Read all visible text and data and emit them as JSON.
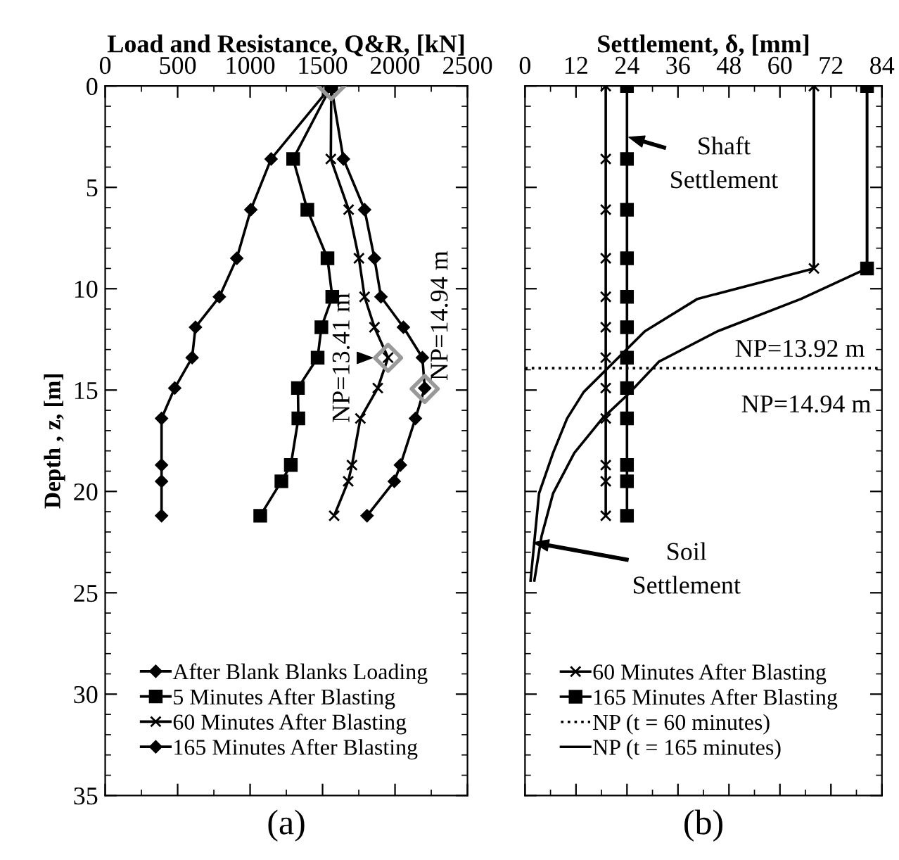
{
  "chart_data": [
    {
      "type": "line",
      "xlabel": "Load and Resistance, Q&R, [kN]",
      "ylabel": "Depth , z, [m]",
      "xlim": [
        0,
        2500
      ],
      "xticks": [
        0,
        500,
        1000,
        1500,
        2000,
        2500
      ],
      "ylim": [
        35,
        0
      ],
      "yticks": [
        0,
        5,
        10,
        15,
        20,
        25,
        30,
        35
      ],
      "legend": "bottom left",
      "line_style": "solid",
      "series": [
        {
          "name": "After Blank Blanks Loading",
          "color": "#000000",
          "marker": "diamond",
          "x": [
            1560,
            1145,
            1005,
            908,
            788,
            623,
            600,
            480,
            389,
            389,
            389,
            389
          ],
          "values": [
            0,
            3.6,
            6.1,
            8.5,
            10.4,
            11.9,
            13.4,
            14.9,
            16.4,
            18.7,
            19.5,
            21.2
          ]
        },
        {
          "name": "5 Minutes After Blasting",
          "color": "#000000",
          "marker": "square",
          "x": [
            1560,
            1297,
            1395,
            1534,
            1567,
            1492,
            1466,
            1330,
            1333,
            1281,
            1216,
            1070
          ],
          "values": [
            0,
            3.6,
            6.1,
            8.5,
            10.4,
            11.9,
            13.4,
            14.9,
            16.4,
            18.7,
            19.5,
            21.2
          ]
        },
        {
          "name": "60 Minutes After Blasting",
          "color": "#000000",
          "marker": "cross",
          "x": [
            1560,
            1557,
            1680,
            1751,
            1790,
            1858,
            1952,
            1881,
            1761,
            1703,
            1677,
            1580
          ],
          "values": [
            0,
            3.6,
            6.1,
            8.5,
            10.4,
            11.9,
            13.4,
            14.9,
            16.4,
            18.7,
            19.5,
            21.2
          ]
        },
        {
          "name": "165 Minutes After Blasting",
          "color": "#000000",
          "marker": "diamond",
          "x": [
            1560,
            1644,
            1790,
            1858,
            1903,
            2058,
            2189,
            2205,
            2141,
            2037,
            1995,
            1807
          ],
          "values": [
            0,
            3.6,
            6.1,
            8.5,
            10.4,
            11.9,
            13.4,
            14.9,
            16.4,
            18.7,
            19.5,
            21.2
          ]
        },
        {
          "type": "scatter",
          "color": "#999999",
          "marker": "diamond",
          "x": [
            1560,
            1952,
            2205
          ],
          "values": [
            0,
            13.41,
            14.94
          ]
        }
      ],
      "annotations": [
        {
          "text": "NP=13.41 m",
          "x": 1952,
          "y": 13.41
        },
        {
          "text": "NP=14.94 m",
          "x": 2205,
          "y": 14.94
        },
        "(a)"
      ]
    },
    {
      "type": "line",
      "xlabel": "Settlement, δ, [mm]",
      "xlim": [
        0,
        84
      ],
      "xticks": [
        0,
        12,
        24,
        36,
        48,
        60,
        72,
        84
      ],
      "ylim": [
        35,
        0
      ],
      "yticks": [
        0,
        5,
        10,
        15,
        20,
        25,
        30,
        35
      ],
      "tick_labels": "x",
      "legend": "bottom left",
      "line_style": "solid",
      "series": [
        {
          "name": "60 Minutes After Blasting",
          "color": "#000000",
          "marker": "cross",
          "x": [
            19,
            19,
            19,
            19,
            19,
            19,
            19,
            19,
            19,
            19,
            19,
            19,
            null,
            68,
            68
          ],
          "values": [
            0,
            3.6,
            6.1,
            8.5,
            10.4,
            11.9,
            13.4,
            14.9,
            16.4,
            18.7,
            19.5,
            21.2,
            null,
            0,
            9
          ]
        },
        {
          "name": "165 Minutes After Blasting",
          "color": "#000000",
          "marker": "square",
          "x": [
            24,
            24,
            24,
            24,
            24,
            24,
            24,
            24,
            24,
            24,
            24,
            24,
            null,
            80.5,
            80.5
          ],
          "values": [
            0,
            3.6,
            6.1,
            8.5,
            10.4,
            11.9,
            13.4,
            14.9,
            16.4,
            18.7,
            19.5,
            21.2,
            null,
            0,
            9
          ]
        },
        {
          "name": "NP (t = 60 minutes)",
          "color": "#000000",
          "marker": "none",
          "line_style": "dotted",
          "x": [
            0,
            84
          ],
          "values": [
            13.92,
            13.92
          ]
        },
        {
          "name": "NP (t = 165 minutes)",
          "color": "#000000",
          "marker": "none",
          "x": [
            80.5,
            80.5,
            65.0,
            45.3,
            31.5,
            24.3,
            18.2,
            11.6,
            6.6,
            3.9,
            2.2
          ],
          "values": [
            0,
            9,
            10.5,
            12.1,
            13.6,
            15.2,
            16.4,
            18.1,
            20.1,
            22.2,
            24.4
          ]
        },
        {
          "color": "#000000",
          "marker": "none",
          "x": [
            68,
            68,
            40.6,
            28.2,
            13.8,
            9.9,
            6.6,
            3.3,
            1.3
          ],
          "values": [
            0,
            9,
            10.5,
            12.1,
            15.1,
            16.4,
            18.1,
            20.1,
            24.4
          ]
        }
      ],
      "annotations": [
        {
          "text": "NP=13.92 m",
          "x": 80,
          "y": 13.92
        },
        "NP=14.94 m",
        {
          "text": "Shaft\nSettlement",
          "x": 24,
          "y": 2.5
        },
        "Soil\nSettlement",
        "(b)"
      ]
    }
  ]
}
